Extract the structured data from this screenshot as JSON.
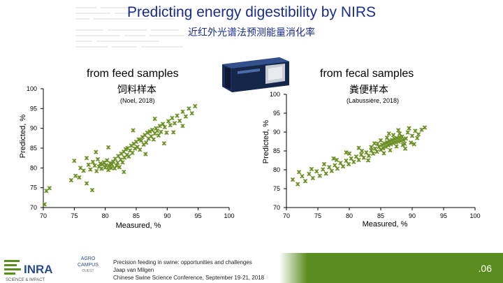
{
  "slide": {
    "title": "Predicting energy digestibility by NIRS",
    "subtitle": "近红外光谱法预测能量消化率",
    "page_number": ".06"
  },
  "footer": {
    "line1": "Precision feeding in swine: opportunities and challenges",
    "line2": "Jaap van Milgen",
    "line3": "Chinese Swine Science Conference, September 19-21, 2018"
  },
  "logos": {
    "inra": "INRA",
    "inra_tagline": "SCIENCE & IMPACT",
    "agro_line1": "AGRO",
    "agro_line2": "CAMPUS",
    "agro_line3": "OUEST"
  },
  "colors": {
    "title": "#1a2d8c",
    "points": "#6b8e23",
    "bottom_bar": "#5b8c1f",
    "device": "#1b2f5e"
  },
  "icons": {
    "device": "nirs-instrument-icon"
  },
  "chart_data": [
    {
      "type": "scatter",
      "heading": "from feed samples",
      "heading_cn": "饲料样本",
      "source": "(Noel, 2018)",
      "title": "from feed samples",
      "xlabel": "Measured, %",
      "ylabel": "Predicted, %",
      "xlim": [
        70,
        100
      ],
      "ylim": [
        70,
        100
      ],
      "x_ticks": [
        70,
        75,
        80,
        85,
        90,
        95,
        100
      ],
      "y_ticks": [
        70,
        75,
        80,
        85,
        90,
        95,
        100
      ],
      "points": [
        [
          70.2,
          70.8
        ],
        [
          70.5,
          74.2
        ],
        [
          71.0,
          74.9
        ],
        [
          74.5,
          76.9
        ],
        [
          75.2,
          78.0
        ],
        [
          75.8,
          77.6
        ],
        [
          76.0,
          80.0
        ],
        [
          76.5,
          79.3
        ],
        [
          77.0,
          76.1
        ],
        [
          77.3,
          80.8
        ],
        [
          77.6,
          79.6
        ],
        [
          77.9,
          74.4
        ],
        [
          78.0,
          81.5
        ],
        [
          78.3,
          80.6
        ],
        [
          78.6,
          79.2
        ],
        [
          78.8,
          82.2
        ],
        [
          79.0,
          80.3
        ],
        [
          79.2,
          81.1
        ],
        [
          79.4,
          79.8
        ],
        [
          79.6,
          80.9
        ],
        [
          79.8,
          81.4
        ],
        [
          80.0,
          80.1
        ],
        [
          80.1,
          80.7
        ],
        [
          80.3,
          81.9
        ],
        [
          80.5,
          79.5
        ],
        [
          80.6,
          80.4
        ],
        [
          80.8,
          81.2
        ],
        [
          81.0,
          80.0
        ],
        [
          81.1,
          80.9
        ],
        [
          81.3,
          81.6
        ],
        [
          81.5,
          79.9
        ],
        [
          81.6,
          82.3
        ],
        [
          81.8,
          80.6
        ],
        [
          82.0,
          81.3
        ],
        [
          82.1,
          83.0
        ],
        [
          82.3,
          80.2
        ],
        [
          82.5,
          82.1
        ],
        [
          82.6,
          83.6
        ],
        [
          82.8,
          81.4
        ],
        [
          83.0,
          84.1
        ],
        [
          83.1,
          82.6
        ],
        [
          83.3,
          84.7
        ],
        [
          83.5,
          83.3
        ],
        [
          83.6,
          85.0
        ],
        [
          83.8,
          82.9
        ],
        [
          84.0,
          84.4
        ],
        [
          84.2,
          85.6
        ],
        [
          84.4,
          83.8
        ],
        [
          84.6,
          86.1
        ],
        [
          84.8,
          84.9
        ],
        [
          85.0,
          86.6
        ],
        [
          85.2,
          85.3
        ],
        [
          85.4,
          87.2
        ],
        [
          85.6,
          84.6
        ],
        [
          85.8,
          86.9
        ],
        [
          86.0,
          87.8
        ],
        [
          86.2,
          85.9
        ],
        [
          86.4,
          88.3
        ],
        [
          86.6,
          86.4
        ],
        [
          86.8,
          88.9
        ],
        [
          87.0,
          87.4
        ],
        [
          87.2,
          89.2
        ],
        [
          87.4,
          88.0
        ],
        [
          87.6,
          89.6
        ],
        [
          87.8,
          87.2
        ],
        [
          88.0,
          88.7
        ],
        [
          88.2,
          90.0
        ],
        [
          88.4,
          89.4
        ],
        [
          88.6,
          88.2
        ],
        [
          88.8,
          90.6
        ],
        [
          89.0,
          89.1
        ],
        [
          89.3,
          91.1
        ],
        [
          89.6,
          90.3
        ],
        [
          89.9,
          88.9
        ],
        [
          90.2,
          91.8
        ],
        [
          90.5,
          90.8
        ],
        [
          90.8,
          92.6
        ],
        [
          91.2,
          91.3
        ],
        [
          91.6,
          93.2
        ],
        [
          92.0,
          91.9
        ],
        [
          92.5,
          94.2
        ],
        [
          93.0,
          93.0
        ],
        [
          93.5,
          95.0
        ],
        [
          94.0,
          93.8
        ],
        [
          94.5,
          95.6
        ],
        [
          78.5,
          84.0
        ],
        [
          80.5,
          85.2
        ],
        [
          83.0,
          79.0
        ],
        [
          86.5,
          83.5
        ],
        [
          89.5,
          86.2
        ],
        [
          91.0,
          89.0
        ],
        [
          77.0,
          82.5
        ],
        [
          84.5,
          89.5
        ],
        [
          88.0,
          92.4
        ],
        [
          92.5,
          90.6
        ],
        [
          75.0,
          81.8
        ]
      ]
    },
    {
      "type": "scatter",
      "heading": "from fecal samples",
      "heading_cn": "粪便样本",
      "source": "(Labussière, 2018)",
      "title": "from fecal samples",
      "xlabel": "Measured, %",
      "ylabel": "Predicted, %",
      "xlim": [
        70,
        100
      ],
      "ylim": [
        70,
        100
      ],
      "x_ticks": [
        70,
        75,
        80,
        85,
        90,
        95,
        100
      ],
      "y_ticks": [
        70,
        75,
        80,
        85,
        90,
        95,
        100
      ],
      "points": [
        [
          71.0,
          77.4
        ],
        [
          71.8,
          76.2
        ],
        [
          72.5,
          78.3
        ],
        [
          73.0,
          77.0
        ],
        [
          73.6,
          78.9
        ],
        [
          74.2,
          77.8
        ],
        [
          74.8,
          79.6
        ],
        [
          75.3,
          78.4
        ],
        [
          75.8,
          80.1
        ],
        [
          76.3,
          79.0
        ],
        [
          76.8,
          80.7
        ],
        [
          77.2,
          79.7
        ],
        [
          77.7,
          81.2
        ],
        [
          78.1,
          80.3
        ],
        [
          78.6,
          81.8
        ],
        [
          79.0,
          80.9
        ],
        [
          79.5,
          82.4
        ],
        [
          79.9,
          81.5
        ],
        [
          80.3,
          83.0
        ],
        [
          80.7,
          82.1
        ],
        [
          81.1,
          83.5
        ],
        [
          81.5,
          82.6
        ],
        [
          81.9,
          84.0
        ],
        [
          82.3,
          83.2
        ],
        [
          82.7,
          84.6
        ],
        [
          83.1,
          83.7
        ],
        [
          83.5,
          85.1
        ],
        [
          83.8,
          84.3
        ],
        [
          84.1,
          85.6
        ],
        [
          84.4,
          84.8
        ],
        [
          84.7,
          86.1
        ],
        [
          85.0,
          85.3
        ],
        [
          85.2,
          86.6
        ],
        [
          85.4,
          85.7
        ],
        [
          85.6,
          87.0
        ],
        [
          85.8,
          86.1
        ],
        [
          86.0,
          87.3
        ],
        [
          86.2,
          86.5
        ],
        [
          86.4,
          87.6
        ],
        [
          86.6,
          86.8
        ],
        [
          86.8,
          87.9
        ],
        [
          87.0,
          87.1
        ],
        [
          87.2,
          88.2
        ],
        [
          87.4,
          87.3
        ],
        [
          87.6,
          88.4
        ],
        [
          87.8,
          87.5
        ],
        [
          88.0,
          88.6
        ],
        [
          88.2,
          87.7
        ],
        [
          88.4,
          88.8
        ],
        [
          88.6,
          87.9
        ],
        [
          88.8,
          86.9
        ],
        [
          89.0,
          88.3
        ],
        [
          86.5,
          85.2
        ],
        [
          87.5,
          86.2
        ],
        [
          88.5,
          86.6
        ],
        [
          85.5,
          84.4
        ],
        [
          84.5,
          86.9
        ],
        [
          86.0,
          88.5
        ],
        [
          87.0,
          89.2
        ],
        [
          88.0,
          89.6
        ],
        [
          89.3,
          89.9
        ],
        [
          90.0,
          89.0
        ],
        [
          90.5,
          90.3
        ],
        [
          91.0,
          89.4
        ],
        [
          91.5,
          90.6
        ],
        [
          89.5,
          91.0
        ],
        [
          83.0,
          82.5
        ],
        [
          82.0,
          85.0
        ],
        [
          80.0,
          84.3
        ],
        [
          78.0,
          82.6
        ],
        [
          76.0,
          81.5
        ],
        [
          74.0,
          80.2
        ],
        [
          72.0,
          79.4
        ],
        [
          77.5,
          83.0
        ],
        [
          79.5,
          84.6
        ],
        [
          81.5,
          85.8
        ],
        [
          92.0,
          91.2
        ],
        [
          90.8,
          88.4
        ],
        [
          86.3,
          89.6
        ],
        [
          87.8,
          90.5
        ],
        [
          85.0,
          87.8
        ],
        [
          84.0,
          87.0
        ],
        [
          83.5,
          86.0
        ],
        [
          88.9,
          85.6
        ],
        [
          89.8,
          87.2
        ],
        [
          90.3,
          86.8
        ]
      ]
    }
  ]
}
